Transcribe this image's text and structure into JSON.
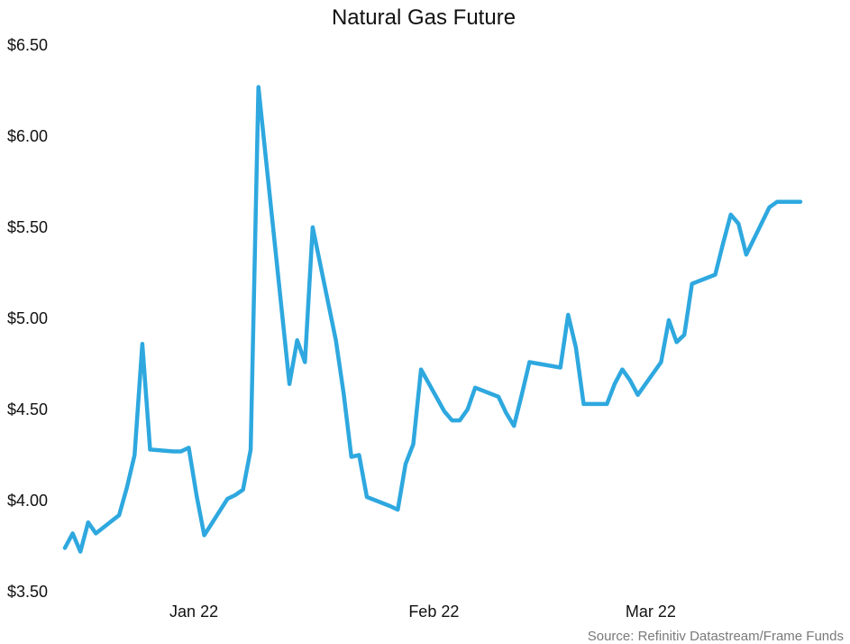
{
  "chart_data": {
    "type": "line",
    "title": "Natural Gas Future",
    "source": "Source: Refinitiv Datastream/Frame Funds",
    "xlabel": "",
    "ylabel": "",
    "ylim": [
      3.5,
      6.5
    ],
    "yticks": [
      {
        "value": 6.5,
        "label": "$6.50"
      },
      {
        "value": 6.0,
        "label": "$6.00"
      },
      {
        "value": 5.5,
        "label": "$5.50"
      },
      {
        "value": 5.0,
        "label": "$5.00"
      },
      {
        "value": 4.5,
        "label": "$4.50"
      },
      {
        "value": 4.0,
        "label": "$4.00"
      },
      {
        "value": 3.5,
        "label": "$3.50"
      }
    ],
    "xticks": [
      {
        "value": "2022-01-01",
        "label": "Jan 22"
      },
      {
        "value": "2022-02-01",
        "label": "Feb 22"
      },
      {
        "value": "2022-03-01",
        "label": "Mar 22"
      }
    ],
    "grid": false,
    "legend": "none",
    "color": "#2ea8df",
    "series": [
      {
        "x": [
          "2021-12-20",
          "2021-12-21",
          "2021-12-22",
          "2021-12-23",
          "2021-12-24",
          "2021-12-27",
          "2021-12-28",
          "2021-12-29",
          "2021-12-30",
          "2021-12-31",
          "2022-01-03",
          "2022-01-04",
          "2022-01-05",
          "2022-01-06",
          "2022-01-07",
          "2022-01-10",
          "2022-01-11",
          "2022-01-12",
          "2022-01-13",
          "2022-01-14",
          "2022-01-18",
          "2022-01-19",
          "2022-01-20",
          "2022-01-21",
          "2022-01-24",
          "2022-01-25",
          "2022-01-26",
          "2022-01-27",
          "2022-01-28",
          "2022-01-31",
          "2022-02-01",
          "2022-02-02",
          "2022-02-03",
          "2022-02-04",
          "2022-02-07",
          "2022-02-08",
          "2022-02-09",
          "2022-02-10",
          "2022-02-11",
          "2022-02-14",
          "2022-02-15",
          "2022-02-16",
          "2022-02-17",
          "2022-02-18",
          "2022-02-22",
          "2022-02-23",
          "2022-02-24",
          "2022-02-25",
          "2022-02-28",
          "2022-03-01",
          "2022-03-02",
          "2022-03-03",
          "2022-03-04",
          "2022-03-07",
          "2022-03-08",
          "2022-03-09",
          "2022-03-10",
          "2022-03-11",
          "2022-03-14",
          "2022-03-15",
          "2022-03-16",
          "2022-03-17",
          "2022-03-18",
          "2022-03-21",
          "2022-03-22",
          "2022-03-23",
          "2022-03-24",
          "2022-03-25"
        ],
        "values": [
          3.74,
          3.82,
          3.72,
          3.88,
          3.82,
          3.92,
          4.07,
          4.25,
          4.86,
          4.28,
          4.27,
          4.27,
          4.29,
          4.03,
          3.81,
          4.01,
          4.03,
          4.06,
          4.28,
          6.27,
          4.64,
          4.88,
          4.76,
          5.5,
          4.88,
          4.59,
          4.24,
          4.25,
          4.02,
          3.97,
          3.95,
          4.2,
          4.31,
          4.72,
          4.49,
          4.44,
          4.44,
          4.5,
          4.62,
          4.57,
          4.48,
          4.41,
          4.58,
          4.76,
          4.73,
          5.02,
          4.84,
          4.53,
          4.53,
          4.64,
          4.72,
          4.66,
          4.58,
          4.76,
          4.99,
          4.87,
          4.91,
          5.19,
          5.24,
          5.41,
          5.57,
          5.52,
          5.35,
          5.61,
          5.64,
          5.64,
          5.64,
          5.64
        ]
      }
    ]
  }
}
